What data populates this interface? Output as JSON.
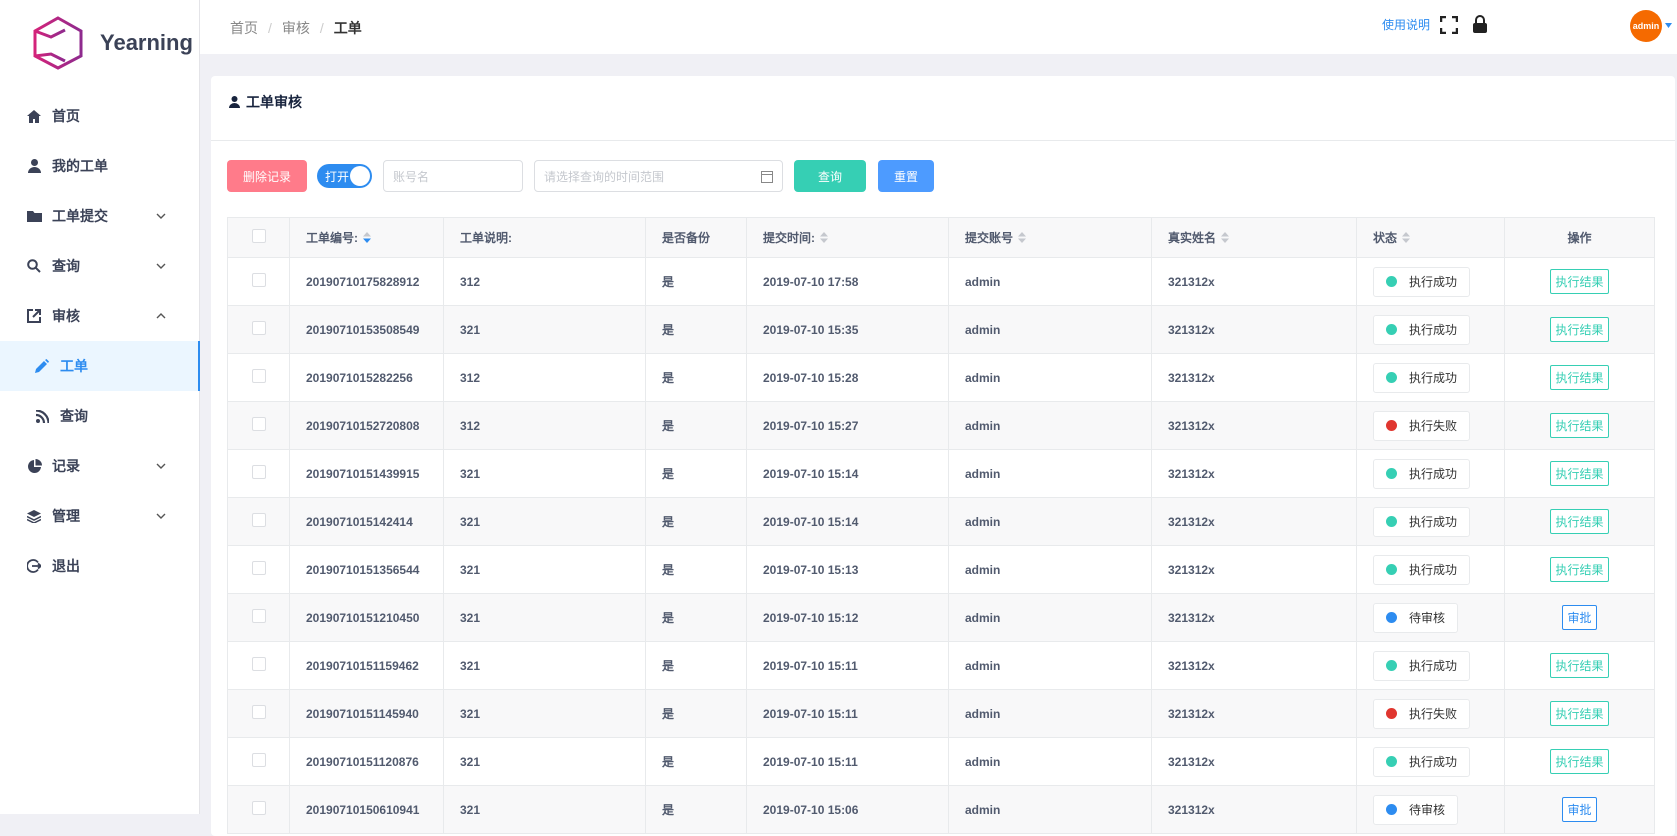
{
  "sidebar": {
    "brand": "Yearning",
    "items": [
      {
        "label": "首页",
        "icon": "home-icon"
      },
      {
        "label": "我的工单",
        "icon": "user-icon"
      },
      {
        "label": "工单提交",
        "icon": "folder-icon",
        "chevron": "down"
      },
      {
        "label": "查询",
        "icon": "search-icon",
        "chevron": "down"
      },
      {
        "label": "审核",
        "icon": "external-link-icon",
        "chevron": "up"
      },
      {
        "label": "工单",
        "icon": "pencil-icon",
        "active": true,
        "sub": true
      },
      {
        "label": "查询",
        "icon": "rss-icon",
        "sub": true
      },
      {
        "label": "记录",
        "icon": "pie-chart-icon",
        "chevron": "down"
      },
      {
        "label": "管理",
        "icon": "layers-icon",
        "chevron": "down"
      },
      {
        "label": "退出",
        "icon": "logout-icon"
      }
    ]
  },
  "header": {
    "breadcrumb": [
      "首页",
      "审核",
      "工单"
    ],
    "help": "使用说明",
    "avatar": "admin"
  },
  "card": {
    "title": "工单审核"
  },
  "toolbar": {
    "delete": "删除记录",
    "toggle": "打开",
    "account_placeholder": "账号名",
    "date_placeholder": "请选择查询的时间范围",
    "query": "查询",
    "reset": "重置"
  },
  "colors": {
    "success": "#36cfb4",
    "fail": "#e0362f",
    "pending": "#2d8cf0",
    "delete": "#ff7b8a",
    "query": "#36cfb4",
    "reset": "#4d9bff"
  },
  "table": {
    "headers": [
      "工单编号:",
      "工单说明:",
      "是否备份",
      "提交时间:",
      "提交账号",
      "真实姓名",
      "状态",
      "操作"
    ],
    "rows": [
      [
        "20190710175828912",
        "312",
        "是",
        "2019-07-10 17:58",
        "admin",
        "321312x",
        "执行成功",
        "执行结果"
      ],
      [
        "20190710153508549",
        "321",
        "是",
        "2019-07-10 15:35",
        "admin",
        "321312x",
        "执行成功",
        "执行结果"
      ],
      [
        "2019071015282256",
        "312",
        "是",
        "2019-07-10 15:28",
        "admin",
        "321312x",
        "执行成功",
        "执行结果"
      ],
      [
        "20190710152720808",
        "312",
        "是",
        "2019-07-10 15:27",
        "admin",
        "321312x",
        "执行失败",
        "执行结果"
      ],
      [
        "20190710151439915",
        "321",
        "是",
        "2019-07-10 15:14",
        "admin",
        "321312x",
        "执行成功",
        "执行结果"
      ],
      [
        "2019071015142414",
        "321",
        "是",
        "2019-07-10 15:14",
        "admin",
        "321312x",
        "执行成功",
        "执行结果"
      ],
      [
        "20190710151356544",
        "321",
        "是",
        "2019-07-10 15:13",
        "admin",
        "321312x",
        "执行成功",
        "执行结果"
      ],
      [
        "20190710151210450",
        "321",
        "是",
        "2019-07-10 15:12",
        "admin",
        "321312x",
        "待审核",
        "审批"
      ],
      [
        "20190710151159462",
        "321",
        "是",
        "2019-07-10 15:11",
        "admin",
        "321312x",
        "执行成功",
        "执行结果"
      ],
      [
        "20190710151145940",
        "321",
        "是",
        "2019-07-10 15:11",
        "admin",
        "321312x",
        "执行失败",
        "执行结果"
      ],
      [
        "20190710151120876",
        "321",
        "是",
        "2019-07-10 15:11",
        "admin",
        "321312x",
        "执行成功",
        "执行结果"
      ],
      [
        "20190710150610941",
        "321",
        "是",
        "2019-07-10 15:06",
        "admin",
        "321312x",
        "待审核",
        "审批"
      ]
    ]
  }
}
